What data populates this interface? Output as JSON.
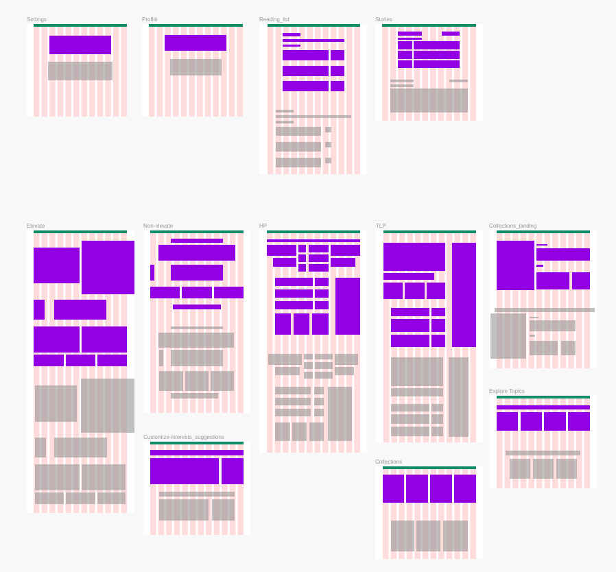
{
  "frames": [
    {
      "label": "Settings"
    },
    {
      "label": "Profile"
    },
    {
      "label": "Reading_list"
    },
    {
      "label": "Stories"
    },
    {
      "label": "Elevate"
    },
    {
      "label": "Non-elevate"
    },
    {
      "label": "Customize-interests_suggestions"
    },
    {
      "label": "HP"
    },
    {
      "label": "TLP"
    },
    {
      "label": "Collections_landing"
    },
    {
      "label": "Explore Topics"
    },
    {
      "label": "Collections"
    }
  ]
}
